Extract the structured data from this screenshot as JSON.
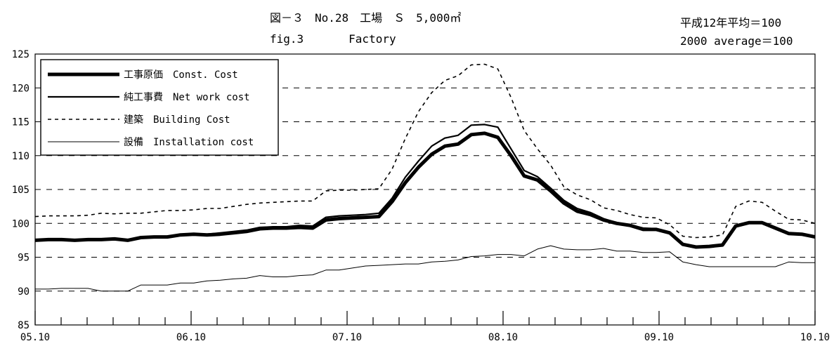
{
  "header": {
    "title_ja": "図－３　No.28　工場　Ｓ　5,000㎡",
    "title_en": "fig.3　　　　Factory",
    "base_ja": "平成12年平均＝100",
    "base_en": "2000 average＝100"
  },
  "chart_data": {
    "type": "line",
    "title": "図－３　No.28　工場　Ｓ　5,000㎡ / fig.3 Factory",
    "xlabel": "",
    "ylabel": "",
    "ylim": [
      85,
      125
    ],
    "yticks": [
      85,
      90,
      95,
      100,
      105,
      110,
      115,
      120,
      125
    ],
    "x_start": "2005-10",
    "x_end": "2010-10",
    "x_tick_labels": [
      "05.10",
      "06.10",
      "07.10",
      "08.10",
      "09.10",
      "10.10"
    ],
    "grid": "horizontal dashed",
    "legend_position": "top-left",
    "series": [
      {
        "name": "工事原価　Const. Cost",
        "style": "thick",
        "values": [
          97.5,
          97.6,
          97.6,
          97.5,
          97.6,
          97.6,
          97.7,
          97.5,
          97.9,
          98.0,
          98.0,
          98.3,
          98.4,
          98.3,
          98.4,
          98.6,
          98.8,
          99.2,
          99.3,
          99.3,
          99.4,
          99.3,
          100.5,
          100.7,
          100.8,
          100.9,
          101.0,
          103.2,
          106.0,
          108.3,
          110.2,
          111.4,
          111.7,
          113.1,
          113.3,
          112.7,
          110.0,
          107.0,
          106.4,
          104.8,
          103.0,
          101.8,
          101.3,
          100.5,
          100.0,
          99.7,
          99.1,
          99.1,
          98.6,
          96.9,
          96.5,
          96.6,
          96.8,
          99.6,
          100.1,
          100.1,
          99.3,
          98.5,
          98.4,
          98.0
        ]
      },
      {
        "name": "純工事費　Net work cost",
        "style": "medium",
        "values": [
          97.6,
          97.7,
          97.7,
          97.6,
          97.7,
          97.7,
          97.8,
          97.6,
          98.0,
          98.1,
          98.1,
          98.4,
          98.5,
          98.4,
          98.6,
          98.8,
          99.0,
          99.4,
          99.5,
          99.5,
          99.7,
          99.6,
          100.9,
          101.1,
          101.2,
          101.3,
          101.5,
          103.7,
          106.8,
          109.2,
          111.4,
          112.6,
          113.0,
          114.5,
          114.6,
          114.2,
          111.0,
          107.8,
          106.9,
          105.2,
          103.4,
          102.2,
          101.6,
          100.7,
          100.1,
          99.8,
          99.3,
          99.2,
          98.7,
          97.0,
          96.6,
          96.7,
          96.9,
          99.7,
          100.2,
          100.2,
          99.4,
          98.6,
          98.5,
          98.1
        ]
      },
      {
        "name": "建築　Building Cost",
        "style": "dashed",
        "values": [
          101.0,
          101.1,
          101.1,
          101.1,
          101.2,
          101.5,
          101.4,
          101.5,
          101.5,
          101.7,
          101.9,
          101.9,
          102.0,
          102.2,
          102.2,
          102.5,
          102.8,
          103.0,
          103.1,
          103.2,
          103.3,
          103.3,
          104.8,
          104.9,
          104.9,
          105.0,
          105.1,
          108.0,
          112.5,
          116.5,
          119.3,
          121.1,
          121.8,
          123.4,
          123.5,
          122.8,
          118.6,
          113.7,
          111.0,
          108.6,
          105.4,
          104.2,
          103.5,
          102.3,
          101.9,
          101.3,
          100.9,
          100.8,
          99.8,
          98.1,
          97.9,
          98.0,
          98.3,
          102.5,
          103.3,
          103.1,
          101.8,
          100.6,
          100.5,
          100.0
        ]
      },
      {
        "name": "設備　Installation cost",
        "style": "thin",
        "values": [
          90.3,
          90.3,
          90.4,
          90.4,
          90.4,
          90.0,
          90.0,
          90.0,
          90.9,
          90.9,
          90.9,
          91.2,
          91.2,
          91.5,
          91.6,
          91.8,
          91.9,
          92.3,
          92.1,
          92.1,
          92.3,
          92.4,
          93.1,
          93.1,
          93.4,
          93.7,
          93.8,
          93.9,
          94.0,
          94.0,
          94.3,
          94.4,
          94.6,
          95.1,
          95.2,
          95.4,
          95.4,
          95.2,
          96.2,
          96.7,
          96.2,
          96.1,
          96.1,
          96.3,
          95.9,
          95.9,
          95.7,
          95.7,
          95.8,
          94.3,
          93.9,
          93.6,
          93.6,
          93.6,
          93.6,
          93.6,
          93.6,
          94.3,
          94.2,
          94.2
        ]
      }
    ]
  }
}
